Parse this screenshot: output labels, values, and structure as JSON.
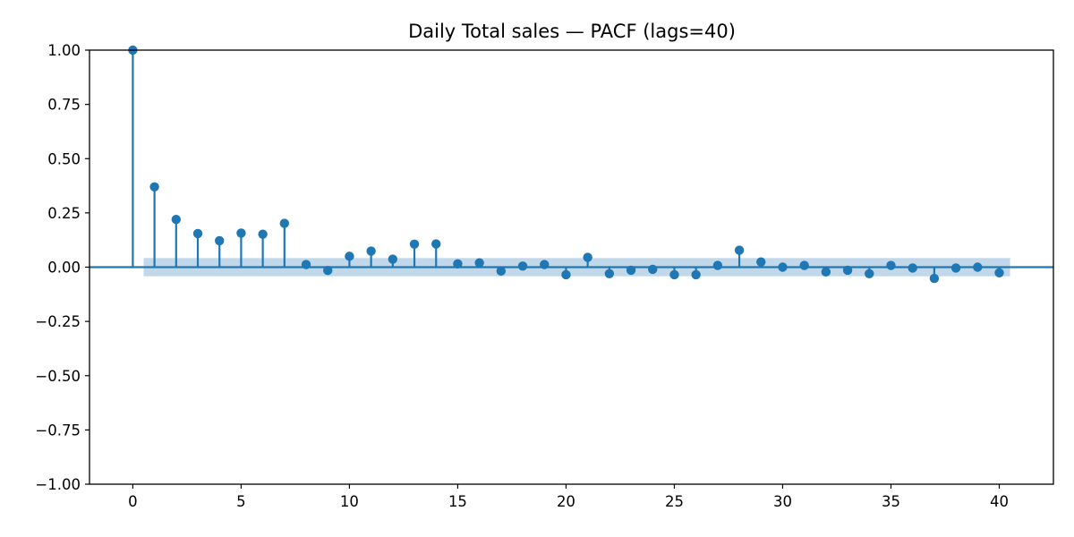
{
  "chart_data": {
    "type": "stem",
    "title": "Daily Total sales — PACF (lags=40)",
    "xlabel": "",
    "ylabel": "",
    "xlim": [
      -2,
      42.5
    ],
    "ylim": [
      -1.0,
      1.0
    ],
    "x_ticks": [
      0,
      5,
      10,
      15,
      20,
      25,
      30,
      35,
      40
    ],
    "x_tick_labels": [
      "0",
      "5",
      "10",
      "15",
      "20",
      "25",
      "30",
      "35",
      "40"
    ],
    "y_ticks": [
      -1.0,
      -0.75,
      -0.5,
      -0.25,
      0.0,
      0.25,
      0.5,
      0.75,
      1.0
    ],
    "y_tick_labels": [
      "−1.00",
      "−0.75",
      "−0.50",
      "−0.25",
      "0.00",
      "0.25",
      "0.50",
      "0.75",
      "1.00"
    ],
    "grid": false,
    "legend": "none",
    "confidence_band": {
      "x_start": 0.5,
      "x_end": 40.5,
      "lower": -0.042,
      "upper": 0.042
    },
    "lags": [
      0,
      1,
      2,
      3,
      4,
      5,
      6,
      7,
      8,
      9,
      10,
      11,
      12,
      13,
      14,
      15,
      16,
      17,
      18,
      19,
      20,
      21,
      22,
      23,
      24,
      25,
      26,
      27,
      28,
      29,
      30,
      31,
      32,
      33,
      34,
      35,
      36,
      37,
      38,
      39,
      40
    ],
    "values": [
      1.0,
      0.37,
      0.22,
      0.155,
      0.122,
      0.157,
      0.152,
      0.202,
      0.012,
      -0.015,
      0.05,
      0.074,
      0.037,
      0.106,
      0.107,
      0.015,
      0.02,
      -0.018,
      0.005,
      0.012,
      -0.035,
      0.045,
      -0.03,
      -0.014,
      -0.01,
      -0.035,
      -0.035,
      0.008,
      0.078,
      0.024,
      0.0,
      0.008,
      -0.022,
      -0.014,
      -0.03,
      0.008,
      -0.004,
      -0.052,
      -0.004,
      0.0,
      -0.026
    ],
    "colors": {
      "stem": "#1f77b4",
      "band": "#a6c8e3",
      "band_alpha": 0.7
    }
  }
}
